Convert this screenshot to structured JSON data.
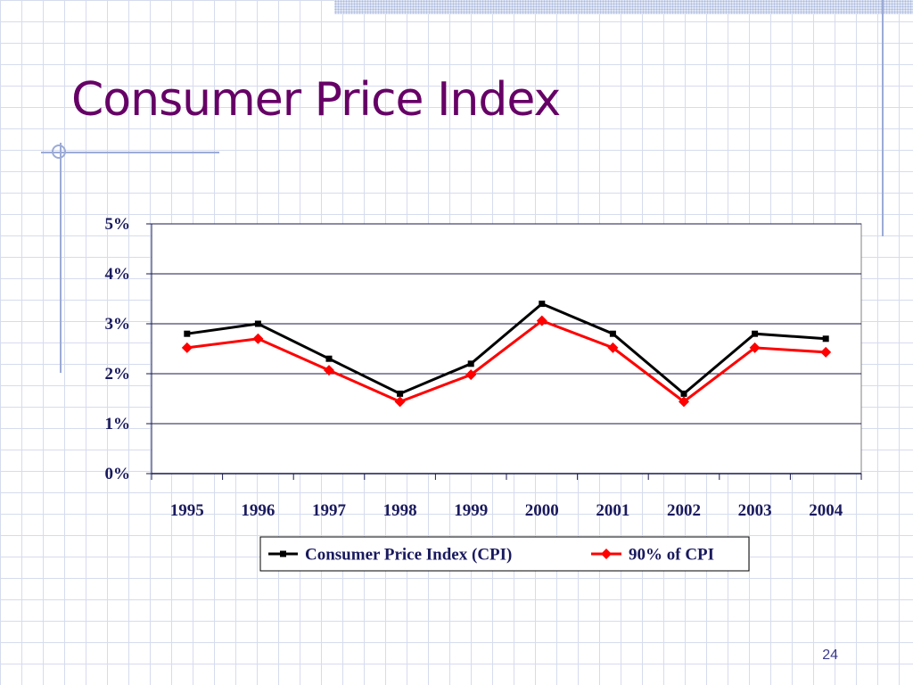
{
  "slide": {
    "title": "Consumer Price Index",
    "number": "24"
  },
  "chart_data": {
    "type": "line",
    "categories": [
      "1995",
      "1996",
      "1997",
      "1998",
      "1999",
      "2000",
      "2001",
      "2002",
      "2003",
      "2004"
    ],
    "series": [
      {
        "name": "Consumer Price Index (CPI)",
        "color": "#000000",
        "marker": "square",
        "values": [
          2.8,
          3.0,
          2.3,
          1.6,
          2.2,
          3.4,
          2.8,
          1.6,
          2.8,
          2.7
        ]
      },
      {
        "name": "90% of CPI",
        "color": "#ff0000",
        "marker": "diamond",
        "values": [
          2.52,
          2.7,
          2.07,
          1.44,
          1.98,
          3.06,
          2.52,
          1.44,
          2.52,
          2.43
        ]
      }
    ],
    "yticks": [
      "0%",
      "1%",
      "2%",
      "3%",
      "4%",
      "5%"
    ],
    "ylim": [
      0,
      5
    ],
    "grid": true,
    "legend_position": "bottom"
  }
}
